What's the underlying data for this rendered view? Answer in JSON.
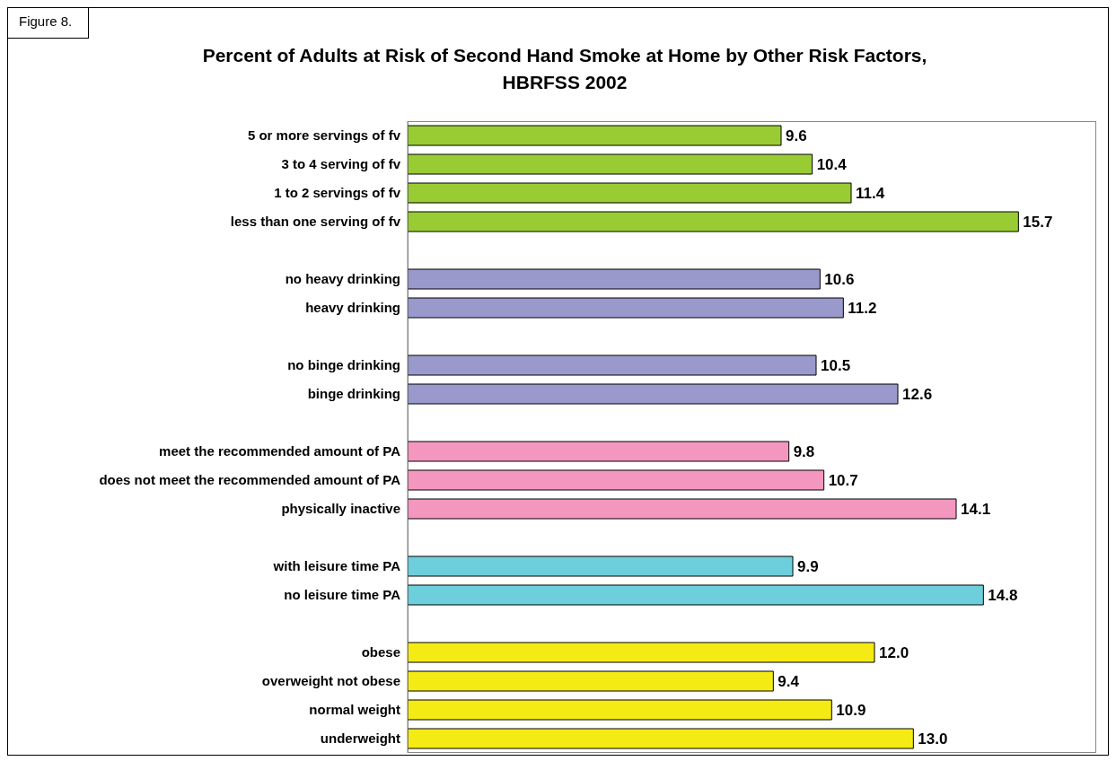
{
  "chart_data": {
    "type": "bar",
    "orientation": "horizontal",
    "title": "Percent of Adults at Risk of Second Hand Smoke at Home by Other Risk Factors, HBRFSS 2002",
    "annotations": [
      "Figure 8."
    ],
    "categories": [
      "5 or more servings of fv",
      "3 to 4 serving of fv",
      "1 to 2 servings of fv",
      "less than one serving of fv",
      null,
      "no heavy drinking",
      "heavy drinking",
      null,
      "no binge drinking",
      "binge drinking",
      null,
      "meet the recommended amount of PA",
      "does not meet the recommended amount of PA",
      "physically inactive",
      null,
      "with leisure time PA",
      "no leisure time PA",
      null,
      "obese",
      "overweight not obese",
      "normal weight",
      "underweight"
    ],
    "values": [
      9.6,
      10.4,
      11.4,
      15.7,
      null,
      10.6,
      11.2,
      null,
      10.5,
      12.6,
      null,
      9.8,
      10.7,
      14.1,
      null,
      9.9,
      14.8,
      null,
      12.0,
      9.4,
      10.9,
      13.0
    ],
    "colors": [
      "#99cc33",
      "#99cc33",
      "#99cc33",
      "#99cc33",
      null,
      "#9999cc",
      "#9999cc",
      null,
      "#9999cc",
      "#9999cc",
      null,
      "#f397bf",
      "#f397bf",
      "#f397bf",
      null,
      "#6dcfdc",
      "#6dcfdc",
      null,
      "#f5eb14",
      "#f5eb14",
      "#f5eb14",
      "#f5eb14"
    ],
    "xlim": [
      0,
      17.7
    ],
    "value_labels": [
      "9.6",
      "10.4",
      "11.4",
      "15.7",
      null,
      "10.6",
      "11.2",
      null,
      "10.5",
      "12.6",
      null,
      "9.8",
      "10.7",
      "14.1",
      null,
      "9.9",
      "14.8",
      null,
      "12.0",
      "9.4",
      "10.9",
      "13.0"
    ]
  }
}
